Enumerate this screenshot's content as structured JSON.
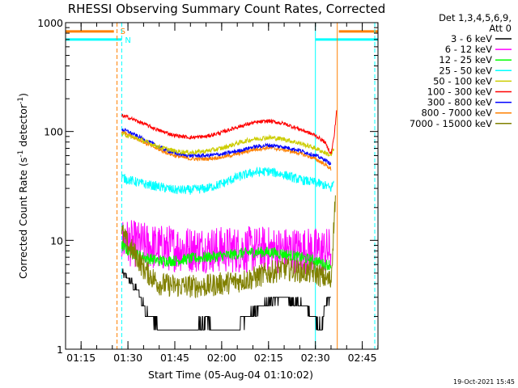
{
  "chart_data": {
    "type": "line",
    "title": "RHESSI Observing Summary Count Rates, Corrected",
    "xlabel": "Start Time (05-Aug-04 01:10:02)",
    "ylabel_main": "Corrected Count Rate (s",
    "ylabel_sup1": "-1",
    "ylabel_mid": " detector",
    "ylabel_sup2": "-1",
    "ylabel_end": ")",
    "y_scale": "log",
    "ylim": [
      1,
      1000
    ],
    "xlim_minutes": [
      70.03,
      170.03
    ],
    "x_ticks": [
      {
        "minute": 75,
        "label": "01:15"
      },
      {
        "minute": 90,
        "label": "01:30"
      },
      {
        "minute": 105,
        "label": "01:45"
      },
      {
        "minute": 120,
        "label": "02:00"
      },
      {
        "minute": 135,
        "label": "02:15"
      },
      {
        "minute": 150,
        "label": "02:30"
      },
      {
        "minute": 165,
        "label": "02:45"
      }
    ],
    "y_ticks": [
      {
        "value": 1,
        "label": "1"
      },
      {
        "value": 10,
        "label": "10"
      },
      {
        "value": 100,
        "label": "100"
      },
      {
        "value": 1000,
        "label": "1000"
      }
    ],
    "legend_header": [
      "Det 1,3,4,5,6,9,",
      "Att 0"
    ],
    "legend_position": "right",
    "timestamp": "19-Oct-2021 15:45",
    "series": [
      {
        "name": "3 - 6 keV",
        "color": "#000000",
        "x": [
          88,
          90,
          93,
          95,
          97,
          100,
          105,
          110,
          115,
          120,
          125,
          130,
          135,
          140,
          145,
          147.5,
          150,
          152,
          153,
          155
        ],
        "y": [
          5,
          4.5,
          3.5,
          2.5,
          2,
          1.6,
          1.4,
          1.5,
          1.8,
          1.4,
          1.6,
          2.2,
          2.8,
          3,
          2.6,
          2.4,
          1.8,
          1.6,
          2.5,
          3
        ]
      },
      {
        "name": "6 - 12 keV",
        "color": "#ff00ff",
        "x": [
          88,
          90,
          95,
          100,
          105,
          110,
          115,
          120,
          125,
          130,
          135,
          140,
          145,
          150,
          153,
          155
        ],
        "y": [
          10,
          9.5,
          9,
          8.5,
          8.5,
          8.3,
          8.3,
          8.2,
          8.2,
          8.2,
          8.2,
          8.1,
          8.1,
          8,
          8,
          8
        ]
      },
      {
        "name": "12 - 25 keV",
        "color": "#00ff00",
        "x": [
          88,
          90,
          95,
          100,
          105,
          110,
          115,
          120,
          125,
          130,
          135,
          140,
          145,
          150,
          153,
          155
        ],
        "y": [
          9,
          8,
          7,
          6.5,
          6.5,
          6.8,
          7,
          7.2,
          7.5,
          7.8,
          7.8,
          7.5,
          7,
          6.5,
          6,
          6
        ]
      },
      {
        "name": "25 - 50 keV",
        "color": "#00ffff",
        "x": [
          88,
          90,
          95,
          100,
          105,
          110,
          115,
          120,
          125,
          130,
          135,
          140,
          145,
          150,
          153,
          155,
          156
        ],
        "y": [
          38,
          36,
          33,
          31,
          29,
          29,
          30,
          33,
          38,
          42,
          43,
          40,
          36,
          34,
          32,
          30,
          35
        ]
      },
      {
        "name": "50 - 100 keV",
        "color": "#cccc00",
        "x": [
          88,
          90,
          95,
          100,
          105,
          110,
          115,
          120,
          125,
          130,
          135,
          140,
          145,
          150,
          153,
          155,
          156
        ],
        "y": [
          95,
          92,
          82,
          72,
          66,
          64,
          66,
          70,
          78,
          85,
          88,
          85,
          78,
          70,
          64,
          60,
          70
        ]
      },
      {
        "name": "100 - 300 keV",
        "color": "#ff0000",
        "x": [
          88,
          90,
          95,
          100,
          105,
          110,
          115,
          120,
          125,
          130,
          135,
          140,
          145,
          150,
          153,
          155,
          156,
          156.8
        ],
        "y": [
          140,
          135,
          118,
          102,
          92,
          88,
          90,
          98,
          110,
          120,
          125,
          118,
          105,
          92,
          80,
          62,
          90,
          160
        ]
      },
      {
        "name": "300 - 800 keV",
        "color": "#0000ff",
        "x": [
          88,
          90,
          95,
          100,
          105,
          110,
          115,
          120,
          125,
          130,
          135,
          140,
          145,
          150,
          153,
          155
        ],
        "y": [
          105,
          100,
          85,
          72,
          63,
          60,
          60,
          62,
          66,
          72,
          75,
          72,
          67,
          60,
          55,
          50
        ]
      },
      {
        "name": "800 - 7000 keV",
        "color": "#ff8000",
        "x": [
          88,
          90,
          95,
          100,
          105,
          110,
          115,
          120,
          125,
          130,
          135,
          140,
          145,
          150,
          153,
          155
        ],
        "y": [
          100,
          95,
          80,
          68,
          60,
          56,
          56,
          58,
          62,
          68,
          71,
          68,
          63,
          56,
          50,
          45
        ]
      },
      {
        "name": "7000 - 15000 keV",
        "color": "#808000",
        "x": [
          88,
          90,
          93,
          95,
          98,
          100,
          105,
          110,
          115,
          120,
          125,
          130,
          135,
          140,
          145,
          150,
          153,
          155,
          156.5
        ],
        "y": [
          12,
          9,
          7,
          5.5,
          4.5,
          4,
          3.8,
          3.8,
          3.8,
          4,
          4.2,
          4.5,
          5,
          5.5,
          5.2,
          5,
          4.5,
          4.2,
          30
        ]
      }
    ],
    "markers": [
      {
        "label": "S",
        "color": "#ff8000",
        "x": 86.5,
        "letter_y": 1000,
        "bar_y": 1000
      },
      {
        "label": "N",
        "color": "#00ffff",
        "x": 88,
        "letter_y": 830,
        "bar_y": 830
      },
      {
        "label": "",
        "color": "#00ffff",
        "x": 150,
        "letter_y": null,
        "bar_y": 830
      },
      {
        "label": "",
        "color": "#ff8000",
        "x": 157,
        "letter_y": null,
        "bar_y": 1000
      },
      {
        "label": "",
        "color": "#00ffff",
        "x": 169,
        "letter_y": null,
        "bar_y": null
      }
    ],
    "orange_bars": [
      [
        70.03,
        85.5
      ],
      [
        157.5,
        170.03
      ]
    ],
    "cyan_bars": [
      [
        70.03,
        88
      ],
      [
        150,
        170.03
      ]
    ]
  }
}
